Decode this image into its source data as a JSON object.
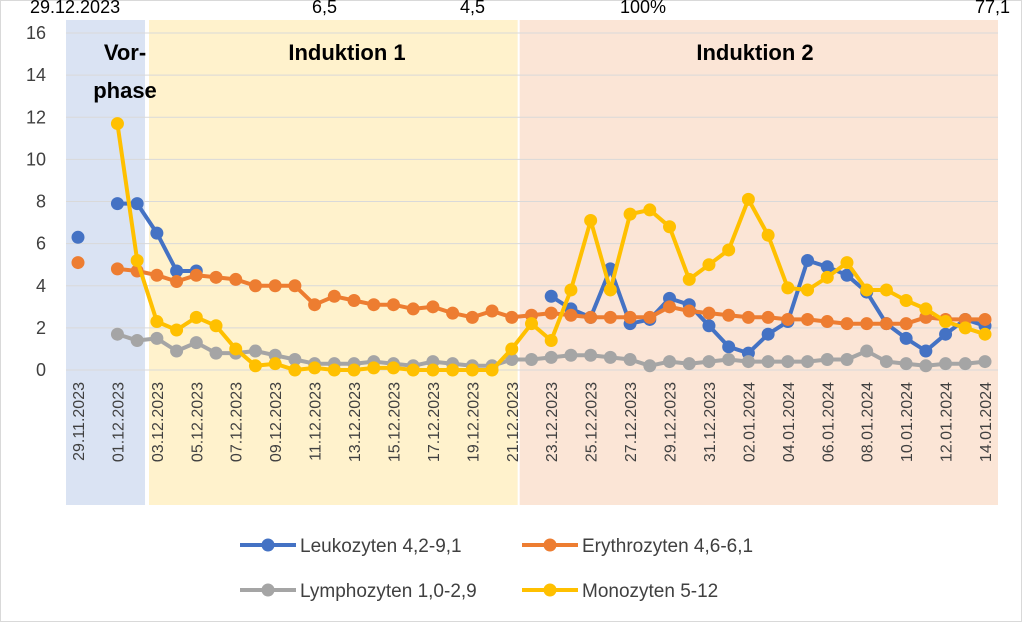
{
  "chart_data": {
    "type": "line",
    "title": "",
    "xlabel": "",
    "ylabel": "",
    "ylim": [
      0,
      16
    ],
    "yticks": [
      0,
      2,
      4,
      6,
      8,
      10,
      12,
      14,
      16
    ],
    "grid": true,
    "legend_position": "bottom",
    "categories": [
      "29.11.2023",
      "30.11.2023",
      "01.12.2023",
      "02.12.2023",
      "03.12.2023",
      "04.12.2023",
      "05.12.2023",
      "06.12.2023",
      "07.12.2023",
      "08.12.2023",
      "09.12.2023",
      "10.12.2023",
      "11.12.2023",
      "12.12.2023",
      "13.12.2023",
      "14.12.2023",
      "15.12.2023",
      "16.12.2023",
      "17.12.2023",
      "18.12.2023",
      "19.12.2023",
      "20.12.2023",
      "21.12.2023",
      "22.12.2023",
      "23.12.2023",
      "24.12.2023",
      "25.12.2023",
      "26.12.2023",
      "27.12.2023",
      "28.12.2023",
      "29.12.2023",
      "30.12.2023",
      "31.12.2023",
      "01.01.2024",
      "02.01.2024",
      "03.01.2024",
      "04.01.2024",
      "05.01.2024",
      "06.01.2024",
      "07.01.2024",
      "08.01.2024",
      "09.01.2024",
      "10.01.2024",
      "11.01.2024",
      "12.01.2024",
      "13.01.2024",
      "14.01.2024"
    ],
    "tick_labels": [
      "29.11.2023",
      "01.12.2023",
      "03.12.2023",
      "05.12.2023",
      "07.12.2023",
      "09.12.2023",
      "11.12.2023",
      "13.12.2023",
      "15.12.2023",
      "17.12.2023",
      "19.12.2023",
      "21.12.2023",
      "23.12.2023",
      "25.12.2023",
      "27.12.2023",
      "29.12.2023",
      "31.12.2023",
      "02.01.2024",
      "04.01.2024",
      "06.01.2024",
      "08.01.2024",
      "10.01.2024",
      "12.01.2024",
      "14.01.2024"
    ],
    "phases": [
      {
        "name": "Vorphase",
        "lines": [
          "Vor-",
          "phase"
        ],
        "start_index": 0,
        "end_index": 3.5,
        "color": "#dae3f3"
      },
      {
        "name": "Induktion 1",
        "lines": [
          "Induktion 1"
        ],
        "start_index": 3.5,
        "end_index": 22.4,
        "color": "#fff2cc"
      },
      {
        "name": "Induktion 2",
        "lines": [
          "Induktion 2"
        ],
        "start_index": 22.4,
        "end_index": 47,
        "color": "#fbe5d6"
      }
    ],
    "series": [
      {
        "name": "Leukozyten 4,2-9,1",
        "color": "#4472c4",
        "values": [
          6.3,
          null,
          7.9,
          7.9,
          6.5,
          4.7,
          4.7,
          null,
          null,
          null,
          null,
          null,
          null,
          null,
          null,
          null,
          null,
          null,
          null,
          null,
          null,
          null,
          null,
          null,
          3.5,
          2.9,
          2.5,
          4.8,
          2.2,
          2.4,
          3.4,
          3.1,
          2.1,
          1.1,
          0.8,
          1.7,
          2.3,
          5.2,
          4.9,
          4.5,
          3.7,
          2.2,
          1.5,
          0.9,
          1.7,
          2.4,
          2.1
        ]
      },
      {
        "name": "Erythrozyten 4,6-6,1",
        "color": "#ed7d31",
        "values": [
          5.1,
          null,
          4.8,
          4.7,
          4.5,
          4.2,
          4.5,
          4.4,
          4.3,
          4.0,
          4.0,
          4.0,
          3.1,
          3.5,
          3.3,
          3.1,
          3.1,
          2.9,
          3.0,
          2.7,
          2.5,
          2.8,
          2.5,
          2.6,
          2.7,
          2.6,
          2.5,
          2.5,
          2.5,
          2.5,
          3.0,
          2.8,
          2.7,
          2.6,
          2.5,
          2.5,
          2.4,
          2.4,
          2.3,
          2.2,
          2.2,
          2.2,
          2.2,
          2.5,
          2.4,
          2.4,
          2.4
        ]
      },
      {
        "name": "Lymphozyten 1,0-2,9",
        "color": "#a5a5a5",
        "values": [
          null,
          null,
          1.7,
          1.4,
          1.5,
          0.9,
          1.3,
          0.8,
          0.8,
          0.9,
          0.7,
          0.5,
          0.3,
          0.3,
          0.3,
          0.4,
          0.3,
          0.2,
          0.4,
          0.3,
          0.2,
          0.2,
          0.5,
          0.5,
          0.6,
          0.7,
          0.7,
          0.6,
          0.5,
          0.2,
          0.4,
          0.3,
          0.4,
          0.5,
          0.4,
          0.4,
          0.4,
          0.4,
          0.5,
          0.5,
          0.9,
          0.4,
          0.3,
          0.2,
          0.3,
          0.3,
          0.4
        ]
      },
      {
        "name": "Monozyten 5-12",
        "color": "#ffc000",
        "values": [
          null,
          null,
          11.7,
          5.2,
          2.3,
          1.9,
          2.5,
          2.1,
          1.0,
          0.2,
          0.3,
          0.0,
          0.1,
          0.0,
          0.0,
          0.1,
          0.1,
          0.0,
          0.0,
          0.0,
          0.0,
          0.0,
          1.0,
          2.2,
          1.4,
          3.8,
          7.1,
          3.8,
          7.4,
          7.6,
          6.8,
          4.3,
          5.0,
          5.7,
          8.1,
          6.4,
          3.9,
          3.8,
          4.4,
          5.1,
          3.8,
          3.8,
          3.3,
          2.9,
          2.3,
          2.0,
          1.7
        ]
      }
    ]
  },
  "cropped_top_text": [
    "29.12.2023",
    "6,5",
    "4,5",
    "100%",
    "77,1"
  ]
}
